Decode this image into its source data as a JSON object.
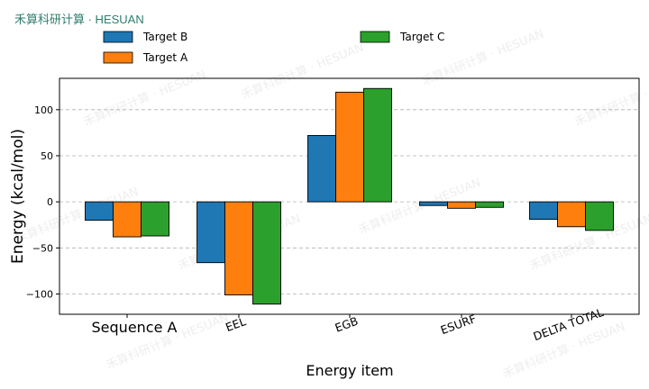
{
  "brand": {
    "text": "禾算科研计算 · HESUAN",
    "color": "#2e7d6b"
  },
  "watermark": {
    "text": "禾算科研计算 · HESUAN"
  },
  "chart_data": {
    "type": "bar",
    "title": "",
    "xlabel": "Energy item",
    "ylabel": "Energy (kcal/mol)",
    "ylim": [
      -122,
      134
    ],
    "yticks": [
      -100,
      -50,
      0,
      50,
      100
    ],
    "ytick_labels": [
      "−100",
      "−50",
      "0",
      "50",
      "100"
    ],
    "grid": {
      "y": true,
      "style": "dashed"
    },
    "legend_placement": "above plot",
    "categories": [
      "Sequence A",
      "EEL",
      "EGB",
      "ESURF",
      "DELTA TOTAL"
    ],
    "series": [
      {
        "name": "Target B",
        "color": "#1f77b4",
        "values": [
          -20,
          -66,
          72,
          -4,
          -19
        ]
      },
      {
        "name": "Target A",
        "color": "#ff7f0e",
        "values": [
          -38,
          -101,
          119,
          -7,
          -27
        ]
      },
      {
        "name": "Target C",
        "color": "#2ca02c",
        "values": [
          -37,
          -111,
          123,
          -6,
          -31
        ]
      }
    ]
  }
}
